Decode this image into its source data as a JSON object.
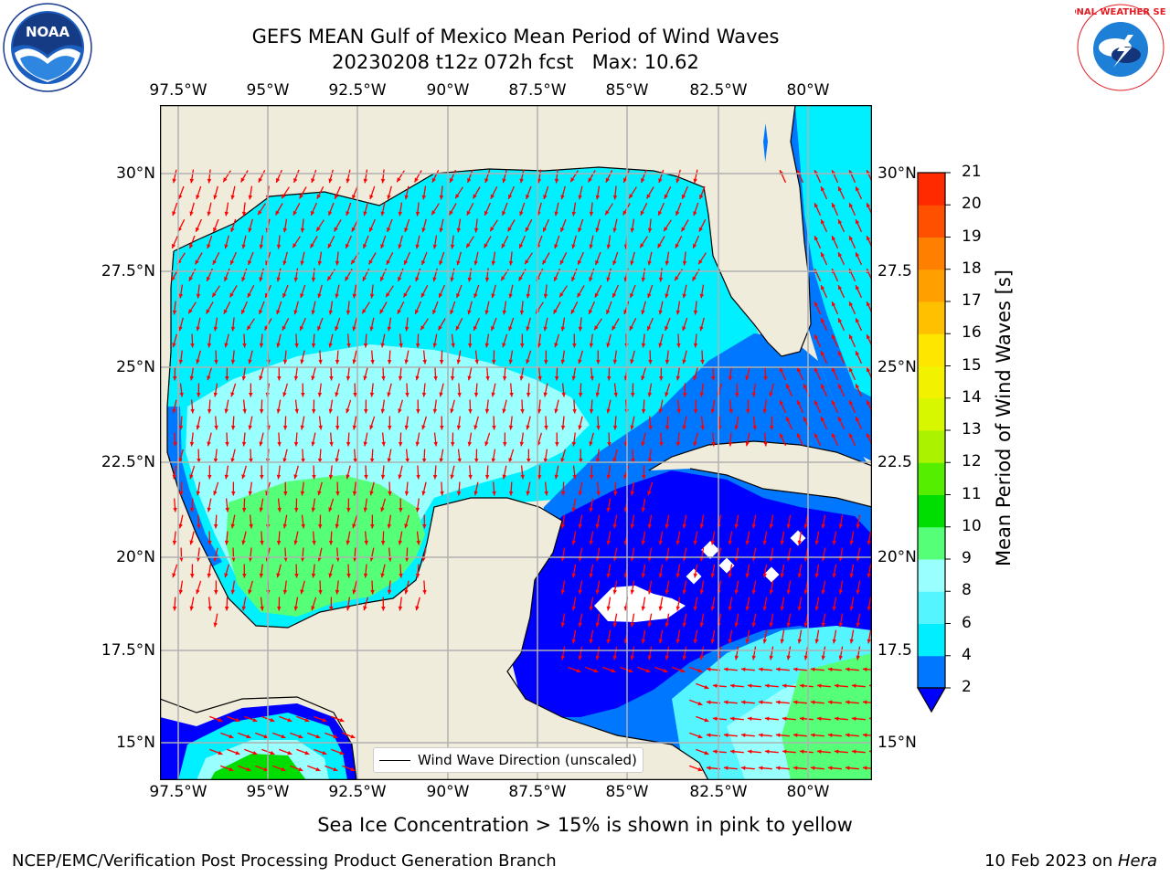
{
  "title": {
    "line1": "GEFS MEAN Gulf of Mexico Mean Period of Wind Waves",
    "line2": "20230208 t12z 072h fcst   Max: 10.62"
  },
  "map": {
    "lon_ticks": [
      "97.5°W",
      "95°W",
      "92.5°W",
      "90°W",
      "87.5°W",
      "85°W",
      "82.5°W",
      "80°W"
    ],
    "lat_ticks_left": [
      "30°N",
      "27.5°N",
      "25°N",
      "22.5°N",
      "20°N",
      "17.5°N",
      "15°N"
    ],
    "lat_ticks_right": [
      "30°N",
      "27.5",
      "25°N",
      "22.5",
      "20°N",
      "17.5",
      "15°N"
    ],
    "legend_label": "Wind Wave Direction (unscaled)",
    "land_color": "#efecdc",
    "arrow_color": "#ff0000"
  },
  "colorbar": {
    "label": "Mean Period of Wind Waves [s]",
    "ticks": [
      "2",
      "4",
      "6",
      "8",
      "9",
      "10",
      "11",
      "12",
      "13",
      "14",
      "15",
      "16",
      "17",
      "18",
      "19",
      "20",
      "21"
    ],
    "colors": [
      "#0000ff",
      "#0077ff",
      "#00eeff",
      "#55f5ff",
      "#99ffff",
      "#55ff77",
      "#00dd00",
      "#55ee00",
      "#aaf200",
      "#d6f700",
      "#f2f200",
      "#ffe600",
      "#ffc000",
      "#ffa000",
      "#ff8000",
      "#ff5000",
      "#ff2a00",
      "#ff0000"
    ]
  },
  "note": "Sea Ice Concentration > 15% is shown in pink to yellow",
  "footer": {
    "left": "NCEP/EMC/Verification Post Processing Product Generation Branch",
    "right_date": "10 Feb 2023 on ",
    "right_host": "Hera"
  },
  "logos": {
    "left": "NOAA",
    "right": "NATIONAL WEATHER SERVICE"
  }
}
